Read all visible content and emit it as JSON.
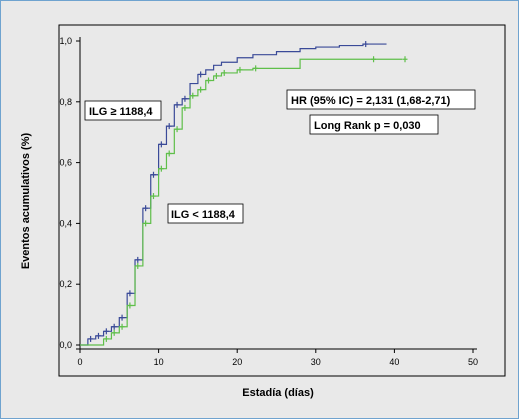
{
  "chart_data": {
    "type": "line",
    "xlabel": "Estadía (días)",
    "ylabel": "Eventos acumulativos (%)",
    "xlim": [
      0,
      50
    ],
    "ylim": [
      0,
      1
    ],
    "x_ticks": [
      0,
      10,
      20,
      30,
      40,
      50
    ],
    "y_ticks": [
      0.0,
      0.2,
      0.4,
      0.6,
      0.8,
      1.0
    ],
    "x_tick_labels": [
      "0",
      "10",
      "20",
      "30",
      "40",
      "50"
    ],
    "y_tick_labels": [
      "0,0",
      "0,2",
      "0,4",
      "0,6",
      "0,8",
      "1,0"
    ],
    "grid": false,
    "series": [
      {
        "name": "ILG ≥ 1188,4",
        "color": "#3a4a98",
        "step": true,
        "x": [
          0,
          1,
          2,
          3,
          4,
          5,
          6,
          7,
          8,
          9,
          10,
          11,
          12,
          13,
          14,
          15,
          16,
          17,
          18,
          20,
          22,
          25,
          28,
          30,
          33,
          36,
          38,
          39
        ],
        "y": [
          0,
          0.02,
          0.03,
          0.045,
          0.06,
          0.09,
          0.17,
          0.28,
          0.45,
          0.56,
          0.66,
          0.72,
          0.79,
          0.81,
          0.86,
          0.89,
          0.905,
          0.92,
          0.93,
          0.945,
          0.955,
          0.965,
          0.975,
          0.98,
          0.985,
          0.99,
          0.99,
          0.99
        ],
        "censor_marks_x": [
          1,
          2,
          3,
          4,
          5,
          6,
          7,
          8,
          9,
          10,
          11,
          12,
          13,
          15,
          36
        ]
      },
      {
        "name": "ILG < 1188,4",
        "color": "#5fbf4a",
        "step": true,
        "x": [
          0,
          3,
          4,
          5,
          6,
          7,
          8,
          9,
          10,
          11,
          12,
          13,
          14,
          15,
          16,
          17,
          18,
          20,
          22,
          28,
          37,
          41
        ],
        "y": [
          0,
          0.02,
          0.04,
          0.06,
          0.13,
          0.26,
          0.4,
          0.49,
          0.58,
          0.63,
          0.71,
          0.78,
          0.82,
          0.84,
          0.87,
          0.885,
          0.895,
          0.905,
          0.91,
          0.94,
          0.94,
          0.94
        ],
        "censor_marks_x": [
          3,
          4,
          5,
          6,
          7,
          8,
          9,
          10,
          11,
          12,
          13,
          14,
          15,
          16,
          17,
          18,
          20,
          22,
          37,
          41
        ]
      }
    ],
    "annotations": {
      "label_high": "ILG ≥ 1188,4",
      "label_low": "ILG < 1188,4",
      "hr_text": "HR (95% IC) = 2,131 (1,68-2,71)",
      "logrank_text": "Long Rank p = 0,030"
    }
  }
}
